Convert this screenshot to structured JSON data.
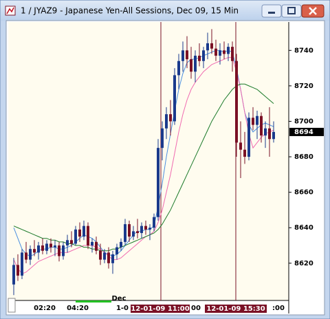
{
  "chart_data": {
    "type": "candlestick",
    "title": "1 / JYAZ9 - Japanese Yen-All Sessions, Dec 09, 15 Min",
    "open": [
      8608,
      8619,
      8613,
      8626,
      8622,
      8628,
      8626,
      8630,
      8627,
      8631,
      8629,
      8630,
      8624,
      8630,
      8633,
      8631,
      8639,
      8635,
      8641,
      8630,
      8632,
      8627,
      8622,
      8626,
      8620,
      8625,
      8629,
      8632,
      8642,
      8635,
      8638,
      8637,
      8641,
      8639,
      8640,
      8646,
      8685,
      8696,
      8704,
      8700,
      8726,
      8734,
      8740,
      8735,
      8728,
      8737,
      8734,
      8740,
      8744,
      8741,
      8737,
      8740,
      8738,
      8742,
      8734,
      8688,
      8684,
      8680,
      8702,
      8698,
      8703,
      8692,
      8696,
      8690
    ],
    "high": [
      8623,
      8625,
      8628,
      8632,
      8630,
      8633,
      8632,
      8634,
      8633,
      8634,
      8633,
      8632,
      8632,
      8636,
      8638,
      8641,
      8643,
      8644,
      8643,
      8634,
      8635,
      8631,
      8628,
      8629,
      8627,
      8631,
      8634,
      8645,
      8644,
      8641,
      8645,
      8643,
      8644,
      8642,
      8648,
      8690,
      8700,
      8708,
      8712,
      8730,
      8738,
      8745,
      8748,
      8742,
      8740,
      8744,
      8742,
      8750,
      8752,
      8746,
      8744,
      8745,
      8744,
      8745,
      8738,
      8700,
      8694,
      8705,
      8708,
      8706,
      8705,
      8700,
      8708,
      8700
    ],
    "low": [
      8602,
      8610,
      8611,
      8620,
      8619,
      8624,
      8622,
      8625,
      8625,
      8626,
      8624,
      8621,
      8622,
      8626,
      8629,
      8630,
      8632,
      8633,
      8628,
      8626,
      8625,
      8619,
      8620,
      8617,
      8614,
      8622,
      8627,
      8630,
      8632,
      8633,
      8634,
      8634,
      8636,
      8633,
      8638,
      8644,
      8678,
      8690,
      8692,
      8698,
      8718,
      8728,
      8730,
      8724,
      8722,
      8731,
      8730,
      8735,
      8738,
      8734,
      8732,
      8735,
      8734,
      8728,
      8680,
      8668,
      8676,
      8678,
      8695,
      8690,
      8688,
      8685,
      8680,
      8688
    ],
    "close": [
      8619,
      8613,
      8626,
      8622,
      8628,
      8626,
      8630,
      8627,
      8631,
      8629,
      8630,
      8624,
      8630,
      8633,
      8631,
      8639,
      8635,
      8641,
      8630,
      8632,
      8627,
      8622,
      8626,
      8620,
      8625,
      8629,
      8632,
      8642,
      8635,
      8638,
      8637,
      8641,
      8639,
      8640,
      8646,
      8685,
      8696,
      8704,
      8700,
      8726,
      8734,
      8740,
      8735,
      8728,
      8737,
      8734,
      8740,
      8744,
      8741,
      8737,
      8740,
      8738,
      8742,
      8734,
      8688,
      8684,
      8680,
      8702,
      8698,
      8703,
      8692,
      8696,
      8690,
      8694
    ],
    "up_color": "#1a3a8c",
    "down_color": "#7a1025",
    "series": [
      {
        "color": "#4a8fe0",
        "values": [
          8640,
          8634,
          8628,
          8625,
          8624,
          8625,
          8627,
          8628,
          8628,
          8629,
          8629,
          8628,
          8628,
          8629,
          8630,
          8632,
          8634,
          8636,
          8635,
          8634,
          8632,
          8629,
          8626,
          8625,
          8624,
          8625,
          8627,
          8630,
          8633,
          8636,
          8638,
          8638,
          8639,
          8639,
          8641,
          8652,
          8665,
          8680,
          8693,
          8706,
          8718,
          8727,
          8733,
          8735,
          8735,
          8736,
          8737,
          8738,
          8739,
          8740,
          8740,
          8739,
          8740,
          8739,
          8730,
          8718,
          8705,
          8698,
          8694,
          8696,
          8698,
          8699,
          8698,
          8697
        ]
      },
      {
        "color": "#f06ab0",
        "values": [
          8622,
          8617,
          8614,
          8615,
          8617,
          8619,
          8621,
          8622,
          8623,
          8624,
          8625,
          8626,
          8626,
          8626,
          8627,
          8628,
          8629,
          8630,
          8630,
          8630,
          8629,
          8628,
          8626,
          8624,
          8622,
          8622,
          8623,
          8625,
          8627,
          8629,
          8631,
          8633,
          8635,
          8636,
          8638,
          8643,
          8650,
          8660,
          8670,
          8682,
          8694,
          8704,
          8712,
          8718,
          8722,
          8725,
          8728,
          8730,
          8732,
          8733,
          8734,
          8735,
          8736,
          8736,
          8728,
          8718,
          8705,
          8693,
          8685,
          8688,
          8691,
          8693,
          8694,
          8695
        ]
      },
      {
        "color": "#1c7a2a",
        "values": [
          8641,
          8640,
          8639,
          8638,
          8637,
          8636,
          8635,
          8634,
          8634,
          8633,
          8633,
          8632,
          8632,
          8631,
          8631,
          8630,
          8630,
          8629,
          8629,
          8628,
          8628,
          8627,
          8627,
          8627,
          8628,
          8628,
          8629,
          8630,
          8631,
          8632,
          8633,
          8634,
          8635,
          8636,
          8637,
          8639,
          8642,
          8646,
          8650,
          8655,
          8660,
          8665,
          8670,
          8675,
          8680,
          8685,
          8690,
          8695,
          8700,
          8704,
          8708,
          8712,
          8715,
          8718,
          8720,
          8721,
          8721,
          8720,
          8719,
          8718,
          8716,
          8714,
          8712,
          8710
        ]
      }
    ],
    "ylim": [
      8599,
      8756
    ],
    "yticks": [
      8620,
      8640,
      8660,
      8680,
      8700,
      8720,
      8740
    ],
    "x_labels": [
      "02:20",
      "04:20",
      "Dec",
      "1-0",
      "12-01-09  11:00",
      "00",
      "12-01-09  15:30",
      ":00"
    ]
  }
}
